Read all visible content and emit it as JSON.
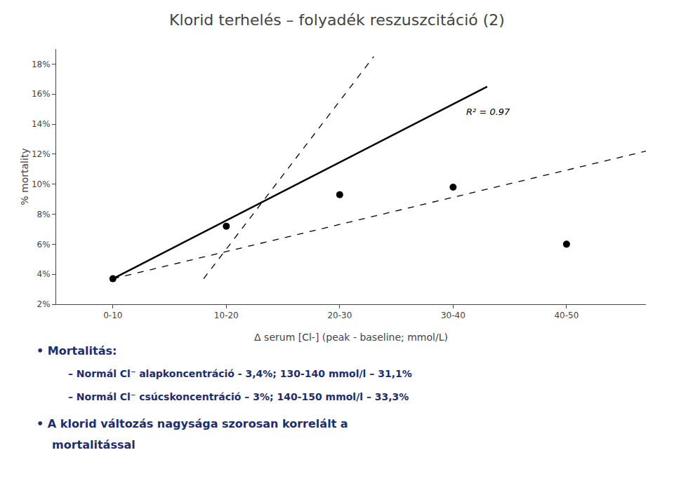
{
  "chart_data": {
    "type": "scatter",
    "title": "Klorid terhelés – folyadék reszuszcitáció (2)",
    "x_label": "Δ serum [Cl-] (peak - baseline; mmol/L)",
    "y_label": "% mortality",
    "xlim": [
      0,
      52
    ],
    "ylim": [
      2,
      19
    ],
    "xticks": [
      {
        "value": 5,
        "label": "0-10"
      },
      {
        "value": 15,
        "label": "10-20"
      },
      {
        "value": 25,
        "label": "20-30"
      },
      {
        "value": 35,
        "label": "30-40"
      },
      {
        "value": 45,
        "label": "40-50"
      }
    ],
    "yticks": [
      {
        "value": 2,
        "label": "2%"
      },
      {
        "value": 4,
        "label": "4%"
      },
      {
        "value": 6,
        "label": "6%"
      },
      {
        "value": 8,
        "label": "8%"
      },
      {
        "value": 10,
        "label": "10%"
      },
      {
        "value": 12,
        "label": "12%"
      },
      {
        "value": 14,
        "label": "14%"
      },
      {
        "value": 16,
        "label": "16%"
      },
      {
        "value": 18,
        "label": "18%"
      }
    ],
    "grid": false,
    "series": [
      {
        "type": "line",
        "line_style": "solid",
        "color": "#000000",
        "x": [
          5,
          38
        ],
        "values": [
          3.7,
          16.5
        ]
      },
      {
        "type": "line",
        "line_style": "dashed",
        "color": "#000000",
        "x": [
          13,
          28
        ],
        "values": [
          3.7,
          18.5
        ]
      },
      {
        "type": "line",
        "line_style": "dashed",
        "color": "#000000",
        "x": [
          5,
          52
        ],
        "values": [
          3.7,
          12.2
        ]
      },
      {
        "type": "scatter",
        "marker": "circle",
        "color": "#000000",
        "x": [
          5,
          15,
          25,
          35,
          45
        ],
        "values": [
          3.7,
          7.2,
          9.3,
          9.8,
          6.0
        ]
      }
    ],
    "annotations": [
      {
        "text": "R² = 0.97",
        "x": 36,
        "y": 14.8
      },
      {
        "text": "• Mortalitás:"
      },
      {
        "text": "– Normál Cl⁻ alapkoncentráció - 3,4%; 130-140 mmol/l – 31,1%"
      },
      {
        "text": "– Normál Cl⁻ csúcskoncentráció – 3%; 140-150 mmol/l – 33,3%"
      },
      {
        "text": "• A klorid változás nagysága szorosan korrelált a"
      },
      {
        "text": "mortalitással"
      }
    ]
  }
}
